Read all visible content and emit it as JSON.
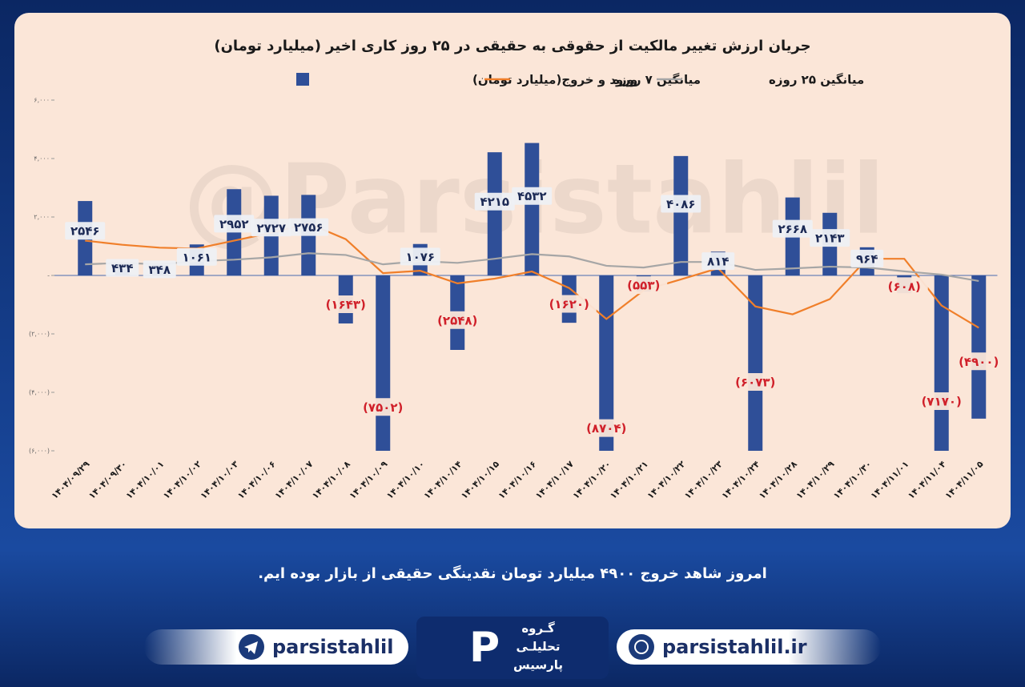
{
  "chart_data": {
    "type": "bar",
    "title": "جریان ارزش تغییر مالکیت از حقوقی به حقیقی در ۲۵ روز کاری اخیر (میلیارد تومان)",
    "watermark": "@Parsistahlil",
    "categories": [
      "۱۴۰۴/۰۹/۲۹",
      "۱۴۰۴/۰۹/۳۰",
      "۱۴۰۴/۱۰/۰۱",
      "۱۴۰۴/۱۰/۰۲",
      "۱۴۰۴/۱۰/۰۳",
      "۱۴۰۴/۱۰/۰۶",
      "۱۴۰۴/۱۰/۰۷",
      "۱۴۰۴/۱۰/۰۸",
      "۱۴۰۴/۱۰/۰۹",
      "۱۴۰۴/۱۰/۱۰",
      "۱۴۰۴/۱۰/۱۴",
      "۱۴۰۴/۱۰/۱۵",
      "۱۴۰۴/۱۰/۱۶",
      "۱۴۰۴/۱۰/۱۷",
      "۱۴۰۴/۱۰/۲۰",
      "۱۴۰۴/۱۰/۲۱",
      "۱۴۰۴/۱۰/۲۲",
      "۱۴۰۴/۱۰/۲۳",
      "۱۴۰۴/۱۰/۲۴",
      "۱۴۰۴/۱۰/۲۸",
      "۱۴۰۴/۱۰/۲۹",
      "۱۴۰۴/۱۰/۳۰",
      "۱۴۰۴/۱۱/۰۱",
      "۱۴۰۴/۱۱/۰۴",
      "۱۴۰۴/۱۱/۰۵"
    ],
    "series": [
      {
        "name": "ورود و خروج(میلیارد تومان)",
        "type": "bar",
        "color": "#2f4f98",
        "values": [
          2546,
          434,
          348,
          1061,
          2952,
          2727,
          2756,
          -1643,
          -7502,
          1076,
          -2548,
          4215,
          4532,
          -1620,
          -8704,
          -553,
          4086,
          814,
          -6073,
          2668,
          2143,
          964,
          -608,
          -7170,
          -4900
        ],
        "value_labels": [
          "۲۵۴۶",
          "۴۳۴",
          "۳۴۸",
          "۱۰۶۱",
          "۲۹۵۲",
          "۲۷۲۷",
          "۲۷۵۶",
          "(۱۶۴۳)",
          "(۷۵۰۲)",
          "۱۰۷۶",
          "(۲۵۴۸)",
          "۴۲۱۵",
          "۴۵۳۲",
          "(۱۶۲۰)",
          "(۸۷۰۴)",
          "(۵۵۳)",
          "۴۰۸۶",
          "۸۱۴",
          "(۶۰۷۳)",
          "۲۶۶۸",
          "۲۱۴۳",
          "۹۶۴",
          "(۶۰۸)",
          "(۷۱۷۰)",
          "(۴۹۰۰)"
        ]
      },
      {
        "name": "میانگین ۷ روزه",
        "type": "line",
        "color": "#f07f2a",
        "values": [
          1190,
          1050,
          950,
          920,
          1190,
          1460,
          1780,
          1240,
          80,
          160,
          -270,
          -110,
          135,
          -430,
          -1490,
          -510,
          -135,
          245,
          -1060,
          -1330,
          -810,
          570,
          570,
          -1030,
          -1790
        ]
      },
      {
        "name": "میانگین ۲۵ روزه",
        "type": "line",
        "color": "#a6a6a6",
        "values": [
          380,
          430,
          380,
          490,
          540,
          620,
          760,
          700,
          380,
          490,
          430,
          570,
          730,
          650,
          330,
          270,
          460,
          460,
          190,
          240,
          300,
          270,
          140,
          30,
          -190
        ]
      }
    ],
    "ylim": [
      -6000,
      6000
    ],
    "yticks": [
      {
        "value": -6000,
        "label": "(۶,۰۰۰)"
      },
      {
        "value": -4000,
        "label": "(۴,۰۰۰)"
      },
      {
        "value": -2000,
        "label": "(۲,۰۰۰)"
      },
      {
        "value": 0,
        "label": "-"
      },
      {
        "value": 2000,
        "label": "۲,۰۰۰"
      },
      {
        "value": 4000,
        "label": "۴,۰۰۰"
      },
      {
        "value": 6000,
        "label": "۶,۰۰۰"
      }
    ]
  },
  "caption": "امروز شاهد خروج ۴۹۰۰ میلیارد تومان نقدینگی حقیقی از بازار بوده ایم.",
  "footer": {
    "telegram": "parsistahlil",
    "website": "parsistahlil.ir",
    "logo_lines": [
      "گـروه",
      "تحلیلـی",
      "پارسیس"
    ]
  }
}
